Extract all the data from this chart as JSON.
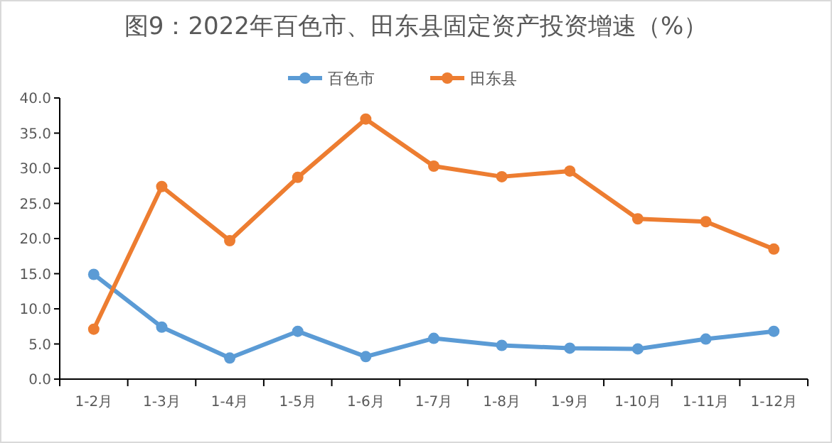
{
  "chart_data": {
    "type": "line",
    "title": "图9：2022年百色市、田东县固定资产投资增速（%）",
    "categories": [
      "1-2月",
      "1-3月",
      "1-4月",
      "1-5月",
      "1-6月",
      "1-7月",
      "1-8月",
      "1-9月",
      "1-10月",
      "1-11月",
      "1-12月"
    ],
    "series": [
      {
        "name": "百色市",
        "color": "#5b9bd5",
        "values": [
          14.9,
          7.4,
          3.0,
          6.8,
          3.2,
          5.8,
          4.8,
          4.4,
          4.3,
          5.7,
          6.8
        ]
      },
      {
        "name": "田东县",
        "color": "#ed7d31",
        "values": [
          7.1,
          27.4,
          19.7,
          28.7,
          37.0,
          30.3,
          28.8,
          29.6,
          22.8,
          22.4,
          18.5
        ]
      }
    ],
    "ylim": [
      0,
      40
    ],
    "yticks": [
      {
        "value": 0,
        "label": "0.0"
      },
      {
        "value": 5,
        "label": "5.0"
      },
      {
        "value": 10,
        "label": "10.0"
      },
      {
        "value": 15,
        "label": "15.0"
      },
      {
        "value": 20,
        "label": "20.0"
      },
      {
        "value": 25,
        "label": "25.0"
      },
      {
        "value": 30,
        "label": "30.0"
      },
      {
        "value": 35,
        "label": "35.0"
      },
      {
        "value": 40,
        "label": "40.0"
      }
    ],
    "grid": false,
    "legend": "top",
    "marker": "circle",
    "line_style": "solid"
  }
}
